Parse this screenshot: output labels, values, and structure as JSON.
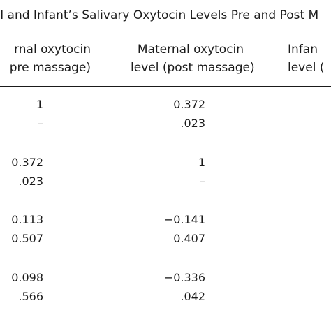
{
  "caption": "al and Infant’s Salivary Oxytocin Levels Pre and Post M",
  "headers": {
    "col1": [
      "rnal oxytocin",
      "pre massage)"
    ],
    "col2": [
      "Maternal oxytocin",
      "level (post massage)"
    ],
    "col3": [
      "Infan",
      "level ("
    ]
  },
  "rows": [
    {
      "c1": "1",
      "c2": "0.372"
    },
    {
      "c1": "–",
      "c2": ".023"
    },
    {
      "c1": "0.372",
      "c2": "1"
    },
    {
      "c1": ".023",
      "c2": "–"
    },
    {
      "c1": "0.113",
      "c2": "−0.141"
    },
    {
      "c1": "0.507",
      "c2": "0.407"
    },
    {
      "c1": "0.098",
      "c2": "−0.336"
    },
    {
      "c1": ".566",
      "c2": ".042"
    }
  ]
}
